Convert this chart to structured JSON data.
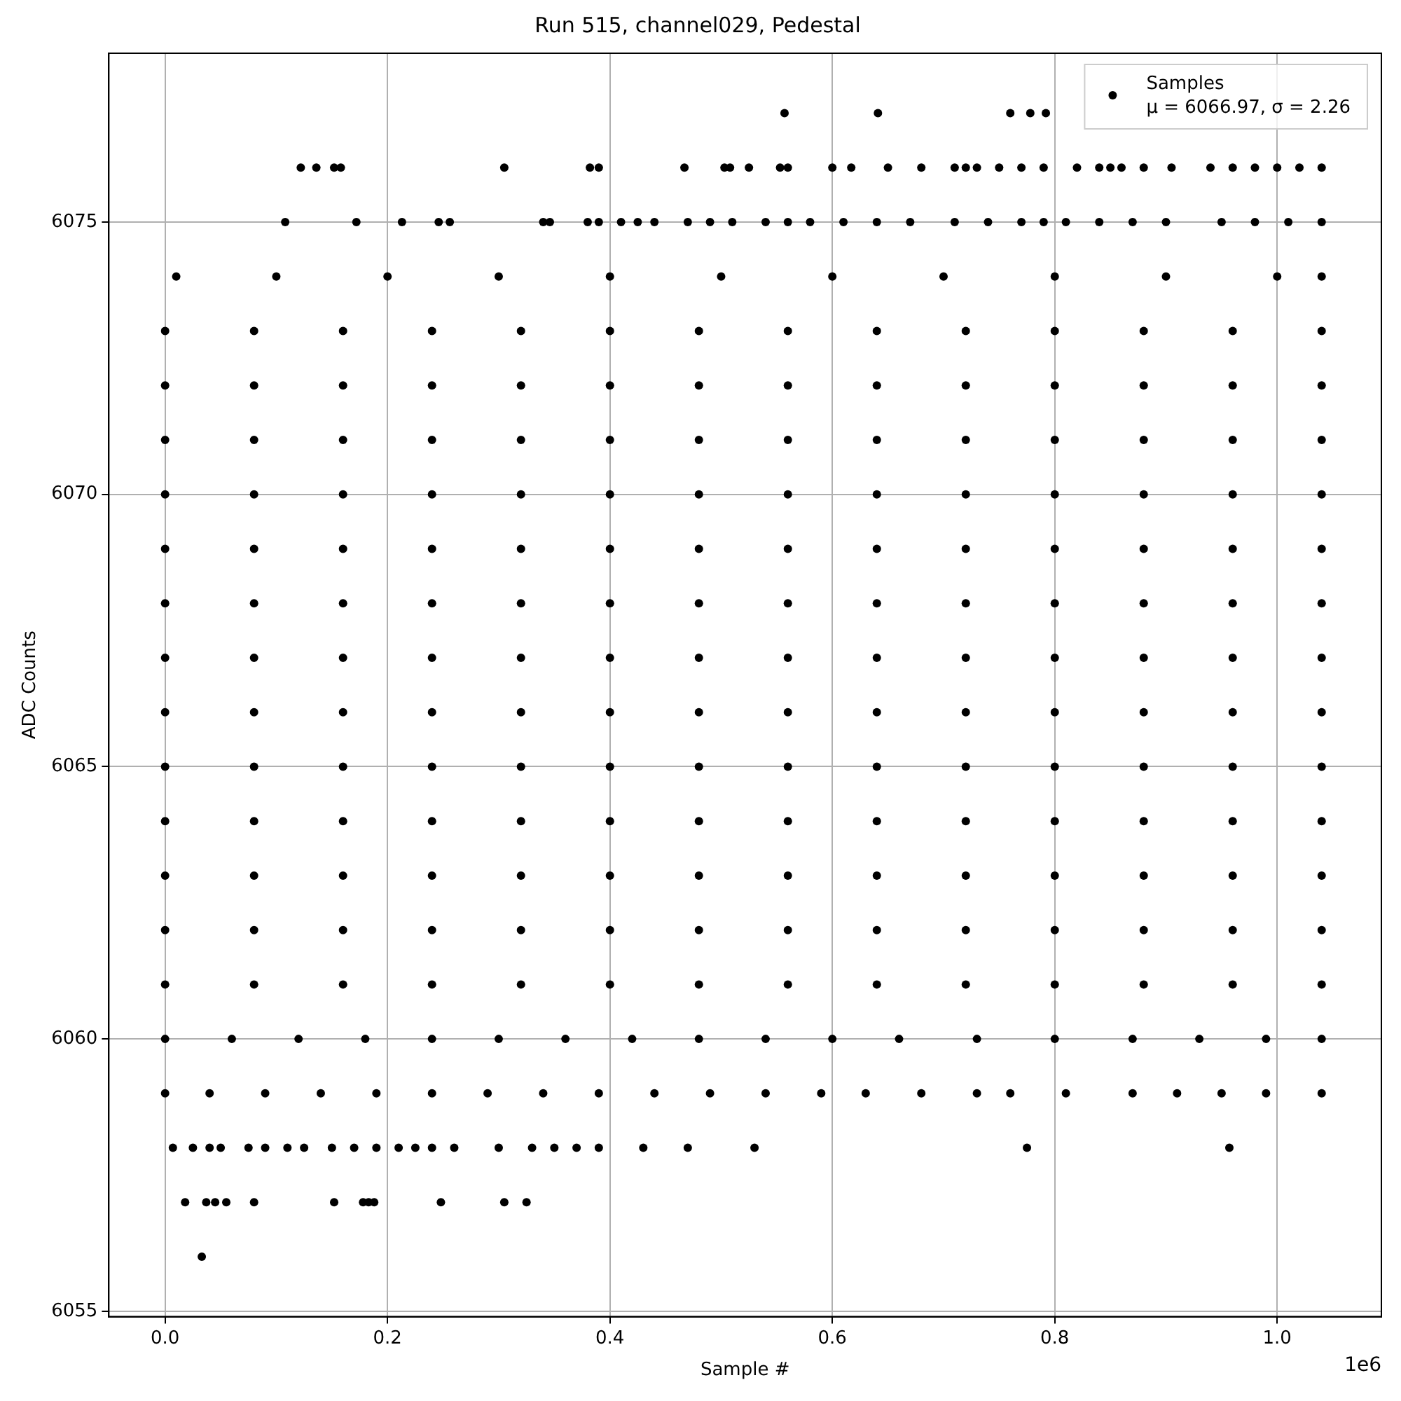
{
  "chart_data": {
    "type": "scatter",
    "title": "Run 515, channel029, Pedestal",
    "xlabel": "Sample #",
    "ylabel": "ADC Counts",
    "xlim": [
      -0.0506,
      1.0937
    ],
    "ylim": [
      6054.9,
      6078.1
    ],
    "xticks": [
      {
        "value": 0,
        "label": "0.0"
      },
      0.2,
      0.4,
      0.6,
      0.8,
      {
        "value": 1,
        "label": "1.0"
      }
    ],
    "yticks": [
      6055,
      6060,
      6065,
      6070,
      6075
    ],
    "grid": true,
    "legend": "top right",
    "marker": "circle",
    "annotations": [
      "μ = 6066.97, σ = 2.26",
      "1e6"
    ],
    "series": [
      {
        "name": "Samples",
        "color": "#000000",
        "x": [
          0,
          0.08,
          0.16,
          0.24,
          0.32,
          0.4,
          0.48,
          0.56,
          0.64,
          0.72,
          0.8,
          0.88,
          0.96,
          1.04
        ],
        "values": [
          6067,
          6067,
          6067,
          6067,
          6067,
          6067,
          6067,
          6067,
          6067,
          6067,
          6067,
          6067,
          6067,
          6067
        ]
      },
      {
        "color": "#000000",
        "x": [
          0,
          0.08,
          0.16,
          0.24,
          0.32,
          0.4,
          0.48,
          0.56,
          0.64,
          0.72,
          0.8,
          0.88,
          0.96,
          1.04
        ],
        "values": [
          6061,
          6061,
          6061,
          6061,
          6061,
          6061,
          6061,
          6061,
          6061,
          6061,
          6061,
          6061,
          6061,
          6061
        ]
      },
      {
        "color": "#000000",
        "x": [
          0,
          0.08,
          0.16,
          0.24,
          0.32,
          0.4,
          0.48,
          0.56,
          0.64,
          0.72,
          0.8,
          0.88,
          0.96,
          1.04
        ],
        "values": [
          6062,
          6062,
          6062,
          6062,
          6062,
          6062,
          6062,
          6062,
          6062,
          6062,
          6062,
          6062,
          6062,
          6062
        ]
      },
      {
        "color": "#000000",
        "x": [
          0,
          0.08,
          0.16,
          0.24,
          0.32,
          0.4,
          0.48,
          0.56,
          0.64,
          0.72,
          0.8,
          0.88,
          0.96,
          1.04
        ],
        "values": [
          6063,
          6063,
          6063,
          6063,
          6063,
          6063,
          6063,
          6063,
          6063,
          6063,
          6063,
          6063,
          6063,
          6063
        ]
      },
      {
        "color": "#000000",
        "x": [
          0,
          0.08,
          0.16,
          0.24,
          0.32,
          0.4,
          0.48,
          0.56,
          0.64,
          0.72,
          0.8,
          0.88,
          0.96,
          1.04
        ],
        "values": [
          6064,
          6064,
          6064,
          6064,
          6064,
          6064,
          6064,
          6064,
          6064,
          6064,
          6064,
          6064,
          6064,
          6064
        ]
      },
      {
        "color": "#000000",
        "x": [
          0,
          0.08,
          0.16,
          0.24,
          0.32,
          0.4,
          0.48,
          0.56,
          0.64,
          0.72,
          0.8,
          0.88,
          0.96,
          1.04
        ],
        "values": [
          6065,
          6065,
          6065,
          6065,
          6065,
          6065,
          6065,
          6065,
          6065,
          6065,
          6065,
          6065,
          6065,
          6065
        ]
      },
      {
        "color": "#000000",
        "x": [
          0,
          0.08,
          0.16,
          0.24,
          0.32,
          0.4,
          0.48,
          0.56,
          0.64,
          0.72,
          0.8,
          0.88,
          0.96,
          1.04
        ],
        "values": [
          6066,
          6066,
          6066,
          6066,
          6066,
          6066,
          6066,
          6066,
          6066,
          6066,
          6066,
          6066,
          6066,
          6066
        ]
      },
      {
        "color": "#000000",
        "x": [
          0,
          0.08,
          0.16,
          0.24,
          0.32,
          0.4,
          0.48,
          0.56,
          0.64,
          0.72,
          0.8,
          0.88,
          0.96,
          1.04
        ],
        "values": [
          6068,
          6068,
          6068,
          6068,
          6068,
          6068,
          6068,
          6068,
          6068,
          6068,
          6068,
          6068,
          6068,
          6068
        ]
      },
      {
        "color": "#000000",
        "x": [
          0,
          0.08,
          0.16,
          0.24,
          0.32,
          0.4,
          0.48,
          0.56,
          0.64,
          0.72,
          0.8,
          0.88,
          0.96,
          1.04
        ],
        "values": [
          6069,
          6069,
          6069,
          6069,
          6069,
          6069,
          6069,
          6069,
          6069,
          6069,
          6069,
          6069,
          6069,
          6069
        ]
      },
      {
        "color": "#000000",
        "x": [
          0,
          0.08,
          0.16,
          0.24,
          0.32,
          0.4,
          0.48,
          0.56,
          0.64,
          0.72,
          0.8,
          0.88,
          0.96,
          1.04
        ],
        "values": [
          6070,
          6070,
          6070,
          6070,
          6070,
          6070,
          6070,
          6070,
          6070,
          6070,
          6070,
          6070,
          6070,
          6070
        ]
      },
      {
        "color": "#000000",
        "x": [
          0,
          0.08,
          0.16,
          0.24,
          0.32,
          0.4,
          0.48,
          0.56,
          0.64,
          0.72,
          0.8,
          0.88,
          0.96,
          1.04
        ],
        "values": [
          6071,
          6071,
          6071,
          6071,
          6071,
          6071,
          6071,
          6071,
          6071,
          6071,
          6071,
          6071,
          6071,
          6071
        ]
      },
      {
        "color": "#000000",
        "x": [
          0,
          0.08,
          0.16,
          0.24,
          0.32,
          0.4,
          0.48,
          0.56,
          0.64,
          0.72,
          0.8,
          0.88,
          0.96,
          1.04
        ],
        "values": [
          6072,
          6072,
          6072,
          6072,
          6072,
          6072,
          6072,
          6072,
          6072,
          6072,
          6072,
          6072,
          6072,
          6072
        ]
      },
      {
        "color": "#000000",
        "x": [
          0,
          0.08,
          0.16,
          0.24,
          0.32,
          0.4,
          0.48,
          0.56,
          0.64,
          0.72,
          0.8,
          0.88,
          0.96,
          1.04
        ],
        "values": [
          6073,
          6073,
          6073,
          6073,
          6073,
          6073,
          6073,
          6073,
          6073,
          6073,
          6073,
          6073,
          6073,
          6073
        ]
      },
      {
        "color": "#000000",
        "x": [
          0.01,
          0.1,
          0.2,
          0.3,
          0.4,
          0.5,
          0.6,
          0.7,
          0.8,
          0.9,
          1.0,
          1.04
        ],
        "values": [
          6074,
          6074,
          6074,
          6074,
          6074,
          6074,
          6074,
          6074,
          6074,
          6074,
          6074,
          6074
        ]
      },
      {
        "color": "#000000",
        "x": [
          0,
          0.06,
          0.12,
          0.18,
          0.24,
          0.3,
          0.36,
          0.42,
          0.48,
          0.54,
          0.6,
          0.66,
          0.73,
          0.8,
          0.87,
          0.93,
          0.99,
          1.04
        ],
        "values": [
          6060,
          6060,
          6060,
          6060,
          6060,
          6060,
          6060,
          6060,
          6060,
          6060,
          6060,
          6060,
          6060,
          6060,
          6060,
          6060,
          6060,
          6060
        ]
      },
      {
        "color": "#000000",
        "x": [
          0,
          0.04,
          0.09,
          0.14,
          0.19,
          0.24,
          0.29,
          0.34,
          0.39,
          0.44,
          0.49,
          0.54,
          0.59,
          0.63,
          0.68,
          0.73,
          0.76,
          0.81,
          0.87,
          0.91,
          0.95,
          0.99,
          1.04
        ],
        "values": [
          6059,
          6059,
          6059,
          6059,
          6059,
          6059,
          6059,
          6059,
          6059,
          6059,
          6059,
          6059,
          6059,
          6059,
          6059,
          6059,
          6059,
          6059,
          6059,
          6059,
          6059,
          6059,
          6059
        ]
      },
      {
        "color": "#000000",
        "x": [
          0.007,
          0.025,
          0.04,
          0.05,
          0.075,
          0.09,
          0.11,
          0.125,
          0.15,
          0.17,
          0.19,
          0.21,
          0.225,
          0.24,
          0.26,
          0.3,
          0.33,
          0.35,
          0.37,
          0.39,
          0.43,
          0.47,
          0.53,
          0.775,
          0.957
        ],
        "values": [
          6058,
          6058,
          6058,
          6058,
          6058,
          6058,
          6058,
          6058,
          6058,
          6058,
          6058,
          6058,
          6058,
          6058,
          6058,
          6058,
          6058,
          6058,
          6058,
          6058,
          6058,
          6058,
          6058,
          6058,
          6058
        ]
      },
      {
        "color": "#000000",
        "x": [
          0.018,
          0.037,
          0.045,
          0.055,
          0.08,
          0.152,
          0.178,
          0.183,
          0.188,
          0.248,
          0.305,
          0.325
        ],
        "values": [
          6057,
          6057,
          6057,
          6057,
          6057,
          6057,
          6057,
          6057,
          6057,
          6057,
          6057,
          6057
        ]
      },
      {
        "color": "#000000",
        "x": [
          0.033
        ],
        "values": [
          6056
        ]
      },
      {
        "color": "#000000",
        "x": [
          0.108,
          0.172,
          0.213,
          0.246,
          0.256,
          0.34,
          0.346,
          0.38,
          0.39,
          0.41,
          0.425,
          0.44,
          0.47,
          0.49,
          0.51,
          0.54,
          0.56,
          0.58,
          0.61,
          0.64,
          0.67,
          0.71,
          0.74,
          0.77,
          0.79,
          0.81,
          0.84,
          0.87,
          0.9,
          0.95,
          0.98,
          1.01,
          1.04
        ],
        "values": [
          6075,
          6075,
          6075,
          6075,
          6075,
          6075,
          6075,
          6075,
          6075,
          6075,
          6075,
          6075,
          6075,
          6075,
          6075,
          6075,
          6075,
          6075,
          6075,
          6075,
          6075,
          6075,
          6075,
          6075,
          6075,
          6075,
          6075,
          6075,
          6075,
          6075,
          6075,
          6075,
          6075
        ]
      },
      {
        "color": "#000000",
        "x": [
          0.122,
          0.136,
          0.152,
          0.158,
          0.305,
          0.382,
          0.39,
          0.467,
          0.503,
          0.508,
          0.525,
          0.553,
          0.56,
          0.6,
          0.617,
          0.65,
          0.68,
          0.71,
          0.72,
          0.73,
          0.75,
          0.77,
          0.79,
          0.82,
          0.84,
          0.85,
          0.86,
          0.88,
          0.905,
          0.94,
          0.96,
          0.98,
          1.0,
          1.02,
          1.04
        ],
        "values": [
          6076,
          6076,
          6076,
          6076,
          6076,
          6076,
          6076,
          6076,
          6076,
          6076,
          6076,
          6076,
          6076,
          6076,
          6076,
          6076,
          6076,
          6076,
          6076,
          6076,
          6076,
          6076,
          6076,
          6076,
          6076,
          6076,
          6076,
          6076,
          6076,
          6076,
          6076,
          6076,
          6076,
          6076,
          6076
        ]
      },
      {
        "color": "#000000",
        "x": [
          0.557,
          0.641,
          0.76,
          0.778,
          0.792
        ],
        "values": [
          6077,
          6077,
          6077,
          6077,
          6077
        ]
      }
    ]
  }
}
